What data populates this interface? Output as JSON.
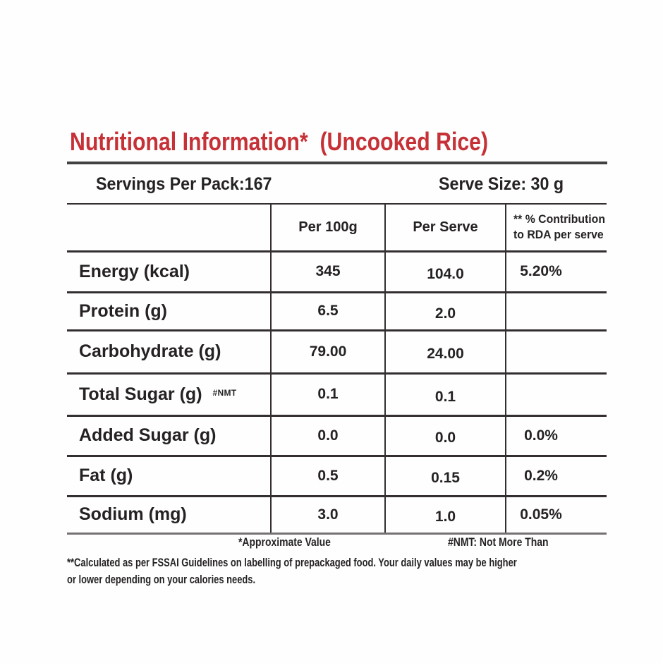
{
  "title": "Nutritional Information*  (Uncooked Rice)",
  "pack": {
    "servings_label": "Servings Per Pack:167",
    "serve_size_label": "Serve Size: 30 g"
  },
  "table": {
    "col_per_100g": "Per 100g",
    "col_per_serve": "Per Serve",
    "col_rda_line1": "** % Contribution",
    "col_rda_line2": "to RDA per serve",
    "rows": [
      {
        "label": "Energy (kcal)",
        "note": "",
        "per_100g": "345",
        "per_serve": "104.0",
        "rda": "5.20%"
      },
      {
        "label": "Protein (g)",
        "note": "",
        "per_100g": "6.5",
        "per_serve": "2.0",
        "rda": ""
      },
      {
        "label": "Carbohydrate (g)",
        "note": "",
        "per_100g": "79.00",
        "per_serve": "24.00",
        "rda": ""
      },
      {
        "label": "Total Sugar (g)",
        "note": "#NMT",
        "per_100g": "0.1",
        "per_serve": "0.1",
        "rda": ""
      },
      {
        "label": "Added Sugar (g)",
        "note": "",
        "per_100g": "0.0",
        "per_serve": "0.0",
        "rda": "0.0%"
      },
      {
        "label": "Fat (g)",
        "note": "",
        "per_100g": "0.5",
        "per_serve": "0.15",
        "rda": "0.2%"
      },
      {
        "label": "Sodium (mg)",
        "note": "",
        "per_100g": "3.0",
        "per_serve": "1.0",
        "rda": "0.05%"
      }
    ]
  },
  "footnotes": {
    "approx": "*Approximate Value",
    "nmt": "#NMT: Not More Than"
  },
  "disclaimer": {
    "line1": "**Calculated as per FSSAI Guidelines on labelling of prepackaged food. Your daily values may be higher",
    "line2": "or lower depending on your calories needs."
  },
  "colors": {
    "title_red": "#c63137",
    "text": "#262223",
    "line": "#332f30"
  }
}
